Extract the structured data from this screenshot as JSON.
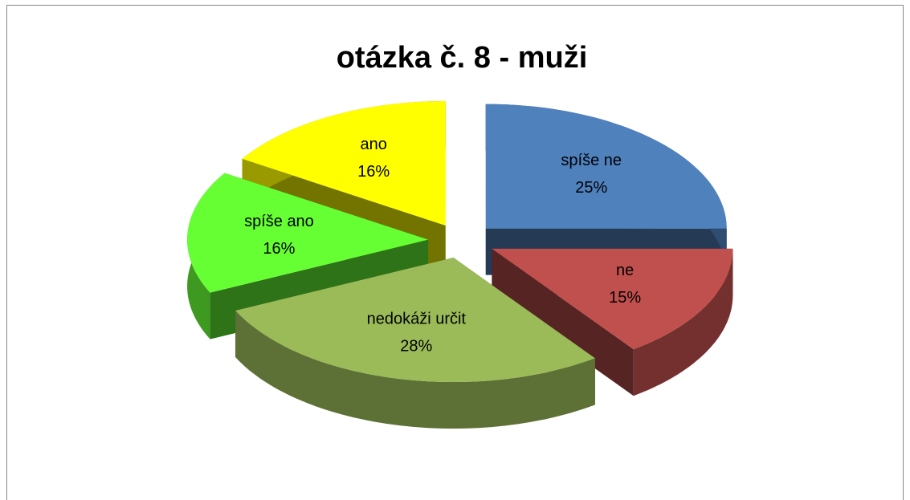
{
  "chart_data": {
    "type": "pie3d",
    "title": "otázka č. 8 - muži",
    "categories": [
      "spíše ne",
      "ne",
      "nedokáži určit",
      "spíše ano",
      "ano"
    ],
    "values": [
      25,
      15,
      28,
      16,
      16
    ],
    "value_labels": [
      "25%",
      "15%",
      "28%",
      "16%",
      "16%"
    ],
    "colors": [
      "#4f81bd",
      "#c0504d",
      "#9bbb59",
      "#66ff33",
      "#ffff00"
    ]
  }
}
